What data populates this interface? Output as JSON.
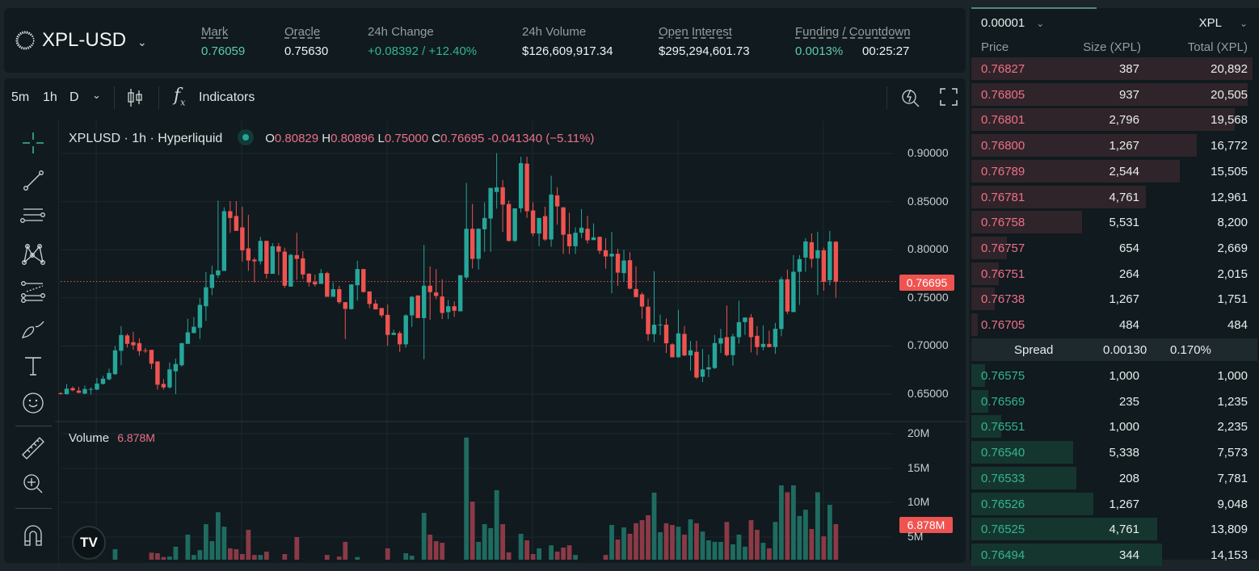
{
  "header": {
    "symbol": "XPL-USD",
    "stats": [
      {
        "label": "Mark",
        "value": "0.76059"
      },
      {
        "label": "Oracle",
        "value": "0.75630"
      },
      {
        "label": "24h Change",
        "value": "+0.08392 / +12.40%"
      },
      {
        "label": "24h Volume",
        "value": "$126,609,917.34"
      },
      {
        "label": "Open Interest",
        "value": "$295,294,601.73"
      },
      {
        "label": "Funding / Countdown",
        "value": "0.0013%",
        "value2": "00:25:27"
      }
    ]
  },
  "toolbar": {
    "intervals": [
      "5m",
      "1h",
      "D"
    ],
    "active_interval": "1h",
    "indicators": "Indicators"
  },
  "legend": {
    "title": "XPLUSD · 1h · Hyperliquid",
    "o_label": "O",
    "o": "0.80829",
    "h_label": "H",
    "h": "0.80896",
    "l_label": "L",
    "l": "0.75000",
    "c_label": "C",
    "c": "0.76695",
    "change": "-0.041340 (−5.11%)"
  },
  "volume_legend": {
    "label": "Volume",
    "value": "6.878M"
  },
  "colors": {
    "up": "#26a69a",
    "down": "#ef5350",
    "up_vol": "#1f6b60",
    "down_vol": "#8b3a46",
    "bg": "#101a1f",
    "accent": "#5fc9b3"
  },
  "chart_data": {
    "type": "candlestick",
    "price_ticks": [
      "0.90000",
      "0.85000",
      "0.80000",
      "0.75000",
      "0.70000",
      "0.65000"
    ],
    "volume_ticks": [
      "20M",
      "15M",
      "10M",
      "5M"
    ],
    "last_price": "0.76695",
    "last_volume": "6.878M",
    "ylim": [
      0.65,
      0.9
    ],
    "ohlc": [
      [
        0.651,
        0.652,
        0.6495,
        0.65
      ],
      [
        0.65,
        0.6603,
        0.6495,
        0.6556
      ],
      [
        0.6562,
        0.658,
        0.653,
        0.654
      ],
      [
        0.6536,
        0.6575,
        0.651,
        0.6514
      ],
      [
        0.6505,
        0.659,
        0.65,
        0.6553
      ],
      [
        0.655,
        0.657,
        0.6495,
        0.6553
      ],
      [
        0.6547,
        0.6668,
        0.654,
        0.661
      ],
      [
        0.6606,
        0.669,
        0.66,
        0.666
      ],
      [
        0.6654,
        0.6765,
        0.6642,
        0.672
      ],
      [
        0.6707,
        0.7,
        0.67,
        0.6955
      ],
      [
        0.695,
        0.7207,
        0.68,
        0.7114
      ],
      [
        0.711,
        0.7128,
        0.6983,
        0.7022
      ],
      [
        0.7039,
        0.7148,
        0.696,
        0.7008
      ],
      [
        0.703,
        0.708,
        0.69,
        0.6947
      ],
      [
        0.6955,
        0.698,
        0.6927,
        0.6947
      ],
      [
        0.696,
        0.696,
        0.676,
        0.6816
      ],
      [
        0.684,
        0.684,
        0.6547,
        0.6598
      ],
      [
        0.6606,
        0.6654,
        0.6547,
        0.657
      ],
      [
        0.657,
        0.683,
        0.6556,
        0.6757
      ],
      [
        0.6737,
        0.6869,
        0.65,
        0.6813
      ],
      [
        0.68,
        0.703,
        0.6785,
        0.703
      ],
      [
        0.7022,
        0.7282,
        0.7022,
        0.7142
      ],
      [
        0.7134,
        0.73,
        0.7134,
        0.72
      ],
      [
        0.719,
        0.7497,
        0.7073,
        0.7427
      ],
      [
        0.7413,
        0.777,
        0.726,
        0.761
      ],
      [
        0.7603,
        0.7835,
        0.7528,
        0.7743
      ],
      [
        0.7735,
        0.851,
        0.7707,
        0.7785
      ],
      [
        0.778,
        0.844,
        0.778,
        0.84
      ],
      [
        0.84,
        0.8506,
        0.8176,
        0.833
      ],
      [
        0.835,
        0.8506,
        0.8196,
        0.8196
      ],
      [
        0.8232,
        0.8447,
        0.7877,
        0.7994
      ],
      [
        0.8014,
        0.8363,
        0.778,
        0.7888
      ],
      [
        0.7897,
        0.7916,
        0.766,
        0.788
      ],
      [
        0.788,
        0.8134,
        0.7846,
        0.8092
      ],
      [
        0.8092,
        0.8092,
        0.77,
        0.775
      ],
      [
        0.775,
        0.807,
        0.775,
        0.8036
      ],
      [
        0.8036,
        0.807,
        0.7737,
        0.798
      ],
      [
        0.798,
        0.8022,
        0.7603,
        0.7626
      ],
      [
        0.7617,
        0.7958,
        0.7617,
        0.7947
      ],
      [
        0.7944,
        0.8176,
        0.7687,
        0.7905
      ],
      [
        0.791,
        0.7986,
        0.7696,
        0.7743
      ],
      [
        0.7752,
        0.7752,
        0.7617,
        0.766
      ],
      [
        0.7665,
        0.7743,
        0.7617,
        0.764
      ],
      [
        0.7645,
        0.78,
        0.7645,
        0.7757
      ],
      [
        0.7757,
        0.7771,
        0.7511,
        0.7511
      ],
      [
        0.7511,
        0.766,
        0.7511,
        0.759
      ],
      [
        0.759,
        0.7626,
        0.7436,
        0.7455
      ],
      [
        0.7455,
        0.7455,
        0.7073,
        0.7385
      ],
      [
        0.7383,
        0.764,
        0.7377,
        0.764
      ],
      [
        0.7631,
        0.7885,
        0.747,
        0.7799
      ],
      [
        0.7799,
        0.7799,
        0.7553,
        0.7561
      ],
      [
        0.7567,
        0.7567,
        0.7394,
        0.7436
      ],
      [
        0.7441,
        0.7483,
        0.738,
        0.738
      ],
      [
        0.7394,
        0.7394,
        0.7296,
        0.7318
      ],
      [
        0.7324,
        0.743,
        0.7003,
        0.7115
      ],
      [
        0.7115,
        0.717,
        0.7115,
        0.7137
      ],
      [
        0.7134,
        0.7156,
        0.6939,
        0.7017
      ],
      [
        0.7017,
        0.733,
        0.6983,
        0.7318
      ],
      [
        0.7318,
        0.752,
        0.7198,
        0.7511
      ],
      [
        0.7525,
        0.7525,
        0.729,
        0.729
      ],
      [
        0.729,
        0.805,
        0.6863,
        0.7626
      ],
      [
        0.7626,
        0.7827,
        0.7273,
        0.7559
      ],
      [
        0.7556,
        0.7799,
        0.7486,
        0.752
      ],
      [
        0.7514,
        0.7693,
        0.728,
        0.7343
      ],
      [
        0.7352,
        0.7478,
        0.728,
        0.7413
      ],
      [
        0.7413,
        0.7464,
        0.7302,
        0.7366
      ],
      [
        0.736,
        0.7735,
        0.736,
        0.7735
      ],
      [
        0.7712,
        0.8693,
        0.769,
        0.8218
      ],
      [
        0.8218,
        0.8475,
        0.7805,
        0.7905
      ],
      [
        0.7905,
        0.8223,
        0.7793,
        0.8218
      ],
      [
        0.8212,
        0.8492,
        0.7978,
        0.833
      ],
      [
        0.8324,
        0.8642,
        0.7978,
        0.8642
      ],
      [
        0.86,
        0.9003,
        0.8427,
        0.8648
      ],
      [
        0.8648,
        0.8726,
        0.8184,
        0.8469
      ],
      [
        0.8475,
        0.8511,
        0.8084,
        0.8092
      ],
      [
        0.8092,
        0.843,
        0.8078,
        0.843
      ],
      [
        0.843,
        0.8966,
        0.8385,
        0.89
      ],
      [
        0.8894,
        0.8966,
        0.833,
        0.84
      ],
      [
        0.8408,
        0.8492,
        0.814,
        0.817
      ],
      [
        0.8168,
        0.833,
        0.8036,
        0.833
      ],
      [
        0.8349,
        0.8447,
        0.8092,
        0.8106
      ],
      [
        0.8106,
        0.8768,
        0.803,
        0.8573
      ],
      [
        0.8564,
        0.865,
        0.826,
        0.845
      ],
      [
        0.8441,
        0.8441,
        0.7955,
        0.8156
      ],
      [
        0.8162,
        0.8385,
        0.7955,
        0.8036
      ],
      [
        0.8036,
        0.8232,
        0.7955,
        0.8176
      ],
      [
        0.8176,
        0.8422,
        0.812,
        0.8229
      ],
      [
        0.8218,
        0.8352,
        0.8064,
        0.8098
      ],
      [
        0.81,
        0.8274,
        0.81,
        0.8128
      ],
      [
        0.8134,
        0.8134,
        0.7955,
        0.7989
      ],
      [
        0.7994,
        0.812,
        0.7804,
        0.793
      ],
      [
        0.793,
        0.8184,
        0.7547,
        0.7958
      ],
      [
        0.7958,
        0.8008,
        0.7623,
        0.7762
      ],
      [
        0.7757,
        0.8,
        0.7665,
        0.7888
      ],
      [
        0.7891,
        0.7975,
        0.7589,
        0.7595
      ],
      [
        0.7592,
        0.7827,
        0.7508,
        0.7508
      ],
      [
        0.7536,
        0.7556,
        0.7282,
        0.741
      ],
      [
        0.7408,
        0.749,
        0.7053,
        0.7123
      ],
      [
        0.7123,
        0.7776,
        0.7039,
        0.7221
      ],
      [
        0.7215,
        0.7327,
        0.7112,
        0.7223
      ],
      [
        0.7221,
        0.7285,
        0.6928,
        0.7028
      ],
      [
        0.7017,
        0.7028,
        0.688,
        0.6883
      ],
      [
        0.6883,
        0.7374,
        0.6877,
        0.7131
      ],
      [
        0.7126,
        0.7207,
        0.6894,
        0.6902
      ],
      [
        0.6902,
        0.7053,
        0.6743,
        0.6955
      ],
      [
        0.6939,
        0.7053,
        0.6659,
        0.6673
      ],
      [
        0.6681,
        0.6969,
        0.6625,
        0.6757
      ],
      [
        0.6757,
        0.6911,
        0.6676,
        0.6779
      ],
      [
        0.6771,
        0.7115,
        0.676,
        0.7031
      ],
      [
        0.7025,
        0.7179,
        0.6927,
        0.7081
      ],
      [
        0.7092,
        0.7419,
        0.6891,
        0.6905
      ],
      [
        0.6905,
        0.7128,
        0.6796,
        0.71
      ],
      [
        0.7092,
        0.747,
        0.7025,
        0.7248
      ],
      [
        0.7248,
        0.7296,
        0.7115,
        0.7296
      ],
      [
        0.7296,
        0.7332,
        0.6933,
        0.7092
      ],
      [
        0.7106,
        0.7207,
        0.6905,
        0.6989
      ],
      [
        0.6989,
        0.7215,
        0.6955,
        0.7022
      ],
      [
        0.7022,
        0.716,
        0.6989,
        0.6989
      ],
      [
        0.6989,
        0.724,
        0.6919,
        0.7179
      ],
      [
        0.7176,
        0.7721,
        0.7101,
        0.7693
      ],
      [
        0.7693,
        0.7793,
        0.733,
        0.7358
      ],
      [
        0.7352,
        0.7944,
        0.7352,
        0.7771
      ],
      [
        0.7771,
        0.7944,
        0.7427,
        0.7902
      ],
      [
        0.7919,
        0.812,
        0.7771,
        0.8086
      ],
      [
        0.8078,
        0.817,
        0.7813,
        0.7905
      ],
      [
        0.7911,
        0.8187,
        0.753,
        0.7994
      ],
      [
        0.7994,
        0.8022,
        0.7575,
        0.7667
      ],
      [
        0.7684,
        0.8196,
        0.7631,
        0.8086
      ],
      [
        0.80829,
        0.80896,
        0.75,
        0.76695
      ]
    ],
    "volume_m": [
      1.5,
      1.5,
      1.5,
      1.5,
      1.5,
      1.5,
      1.5,
      1.5,
      1.5,
      3.24,
      1.5,
      1.5,
      1.5,
      1.5,
      1.5,
      2.73,
      2.65,
      2.1,
      2.17,
      3.6,
      1.5,
      5.35,
      2.4,
      3.1,
      6.87,
      4.4,
      8.6,
      6.5,
      3.36,
      3.24,
      2.53,
      6.05,
      2.4,
      2.4,
      2.88,
      1.5,
      1.5,
      2.53,
      1.5,
      5.0,
      1.5,
      1.5,
      1.5,
      1.5,
      2.4,
      1.5,
      2.17,
      4.3,
      1.5,
      2.1,
      1.5,
      1.5,
      1.5,
      1.5,
      3.36,
      1.5,
      1.5,
      2.65,
      2.3,
      1.5,
      8.5,
      5.35,
      4.4,
      4.17,
      1.5,
      1.5,
      1.5,
      19.45,
      10.15,
      4.3,
      6.87,
      6.3,
      11.8,
      6.87,
      2.77,
      1.5,
      5.47,
      4.52,
      2.53,
      3.36,
      1.5,
      3.8,
      2.88,
      3.47,
      3.8,
      2.4,
      1.5,
      1.5,
      1.5,
      1.5,
      2.4,
      6.75,
      4.64,
      6.4,
      5.47,
      7.0,
      7.45,
      8.16,
      11.45,
      5.7,
      7.0,
      6.75,
      6.5,
      5.35,
      7.57,
      7.0,
      5.8,
      4.52,
      4.3,
      4.3,
      7.2,
      3.94,
      5.35,
      3.6,
      7.45,
      6.05,
      4.17,
      3.36,
      7.2,
      12.5,
      11.5,
      12.5,
      8.05,
      8.97,
      6.17,
      11.5,
      5.11,
      9.68,
      6.878
    ]
  },
  "orderbook": {
    "tick": "0.00001",
    "unit": "XPL",
    "headers": [
      "Price",
      "Size (XPL)",
      "Total (XPL)"
    ],
    "asks": [
      [
        "0.76827",
        "387",
        "20,892"
      ],
      [
        "0.76805",
        "937",
        "20,505"
      ],
      [
        "0.76801",
        "2,796",
        "19,568"
      ],
      [
        "0.76800",
        "1,267",
        "16,772"
      ],
      [
        "0.76789",
        "2,544",
        "15,505"
      ],
      [
        "0.76781",
        "4,761",
        "12,961"
      ],
      [
        "0.76758",
        "5,531",
        "8,200"
      ],
      [
        "0.76757",
        "654",
        "2,669"
      ],
      [
        "0.76751",
        "264",
        "2,015"
      ],
      [
        "0.76738",
        "1,267",
        "1,751"
      ],
      [
        "0.76705",
        "484",
        "484"
      ]
    ],
    "spread": {
      "label": "Spread",
      "value": "0.00130",
      "pct": "0.170%"
    },
    "bids": [
      [
        "0.76575",
        "1,000",
        "1,000"
      ],
      [
        "0.76569",
        "235",
        "1,235"
      ],
      [
        "0.76551",
        "1,000",
        "2,235"
      ],
      [
        "0.76540",
        "5,338",
        "7,573"
      ],
      [
        "0.76533",
        "208",
        "7,781"
      ],
      [
        "0.76526",
        "1,267",
        "9,048"
      ],
      [
        "0.76525",
        "4,761",
        "13,809"
      ],
      [
        "0.76494",
        "344",
        "14,153"
      ]
    ]
  }
}
